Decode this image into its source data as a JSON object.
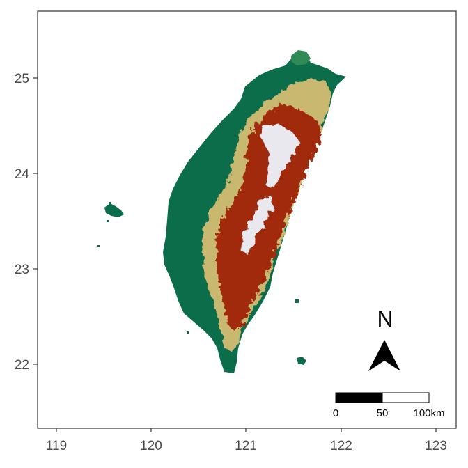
{
  "map": {
    "x_ticks": [
      "119",
      "120",
      "121",
      "122",
      "123"
    ],
    "y_ticks": [
      "25",
      "24",
      "23",
      "22"
    ],
    "north_label": "N",
    "scale_labels": [
      "0",
      "50",
      "100km"
    ],
    "colors": {
      "lowland": "#0b6d4a",
      "midland": "#c9b870",
      "highland": "#a12c0f",
      "peak": "#e8e8ee",
      "frame": "#333333"
    }
  },
  "chart_data": {
    "type": "map",
    "xlim": [
      118.8,
      123.2
    ],
    "ylim": [
      21.3,
      25.7
    ],
    "x_ticks": [
      119,
      120,
      121,
      122,
      123
    ],
    "y_ticks": [
      22,
      23,
      24,
      25
    ],
    "grid": false,
    "legend": "none"
  }
}
